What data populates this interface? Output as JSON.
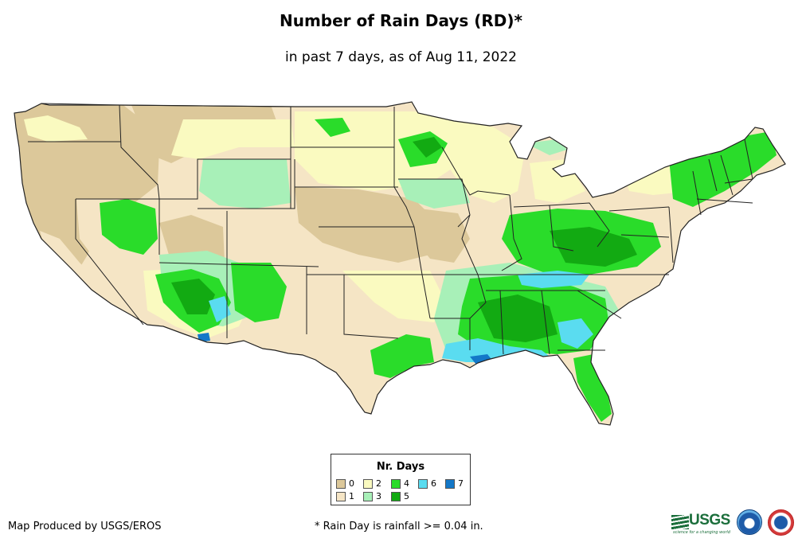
{
  "title": "Number of Rain Days (RD)*",
  "subtitle": "in past 7 days, as of Aug 11, 2022",
  "legend": {
    "title": "Nr. Days",
    "items": [
      {
        "label": "0",
        "color": "#dcc89a"
      },
      {
        "label": "1",
        "color": "#f5e5c5"
      },
      {
        "label": "2",
        "color": "#fafac0"
      },
      {
        "label": "3",
        "color": "#a8f0b8"
      },
      {
        "label": "4",
        "color": "#2adc2a"
      },
      {
        "label": "5",
        "color": "#12aa12"
      },
      {
        "label": "6",
        "color": "#5adcf0"
      },
      {
        "label": "7",
        "color": "#1478c8"
      }
    ]
  },
  "footer": {
    "producer": "Map Produced by USGS/EROS",
    "note": "* Rain Day is rainfall >= 0.04 in."
  },
  "logos": {
    "usgs": {
      "icon": "usgs-logo-icon",
      "text": "USGS",
      "tagline": "science for a changing world"
    },
    "noaa": {
      "icon": "noaa-logo-icon",
      "text": "NOAA"
    },
    "nws": {
      "icon": "nws-logo-icon",
      "text": "NATIONAL WEATHER SERVICE"
    }
  }
}
